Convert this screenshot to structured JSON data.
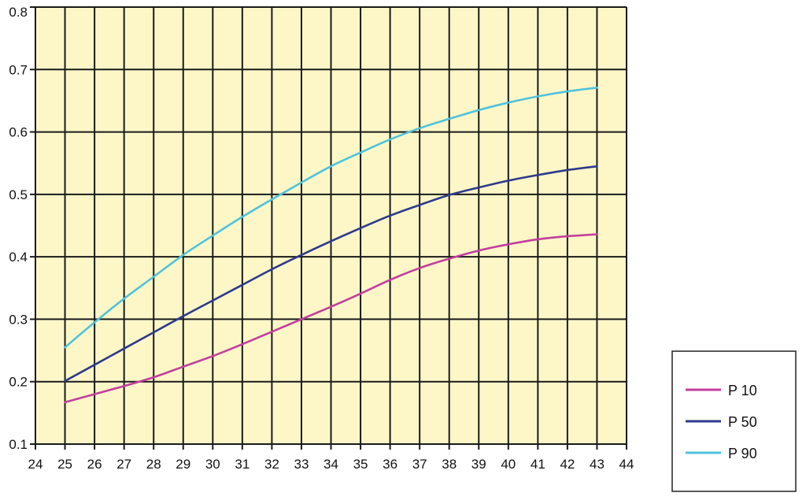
{
  "chart_data": {
    "type": "line",
    "title": "",
    "xlabel": "",
    "ylabel": "",
    "xlim": [
      24,
      44
    ],
    "ylim": [
      0.1,
      0.8
    ],
    "x_ticks": [
      "24",
      "25",
      "26",
      "27",
      "28",
      "29",
      "30",
      "31",
      "32",
      "33",
      "34",
      "35",
      "36",
      "37",
      "38",
      "39",
      "40",
      "41",
      "42",
      "43",
      "44"
    ],
    "y_ticks": [
      "0.1",
      "0.2",
      "0.3",
      "0.4",
      "0.5",
      "0.6",
      "0.7",
      "0.8"
    ],
    "grid": true,
    "background_color": "#fdf7c8",
    "legend_position": "right-bottom",
    "x": [
      25,
      26,
      27,
      28,
      29,
      30,
      31,
      32,
      33,
      34,
      35,
      36,
      37,
      38,
      39,
      40,
      41,
      42,
      43
    ],
    "series": [
      {
        "name": "P 10",
        "color": "#c23f9e",
        "values": [
          0.167,
          0.18,
          0.193,
          0.207,
          0.224,
          0.241,
          0.26,
          0.28,
          0.3,
          0.32,
          0.341,
          0.363,
          0.382,
          0.397,
          0.41,
          0.42,
          0.428,
          0.433,
          0.436
        ]
      },
      {
        "name": "P 50",
        "color": "#2d3a8c",
        "values": [
          0.201,
          0.227,
          0.253,
          0.279,
          0.305,
          0.33,
          0.355,
          0.38,
          0.403,
          0.425,
          0.446,
          0.466,
          0.483,
          0.499,
          0.511,
          0.522,
          0.531,
          0.539,
          0.545
        ]
      },
      {
        "name": "P 90",
        "color": "#4fc3dc",
        "values": [
          0.255,
          0.295,
          0.333,
          0.368,
          0.403,
          0.434,
          0.464,
          0.492,
          0.519,
          0.545,
          0.567,
          0.588,
          0.606,
          0.621,
          0.635,
          0.647,
          0.657,
          0.665,
          0.671
        ]
      }
    ]
  }
}
